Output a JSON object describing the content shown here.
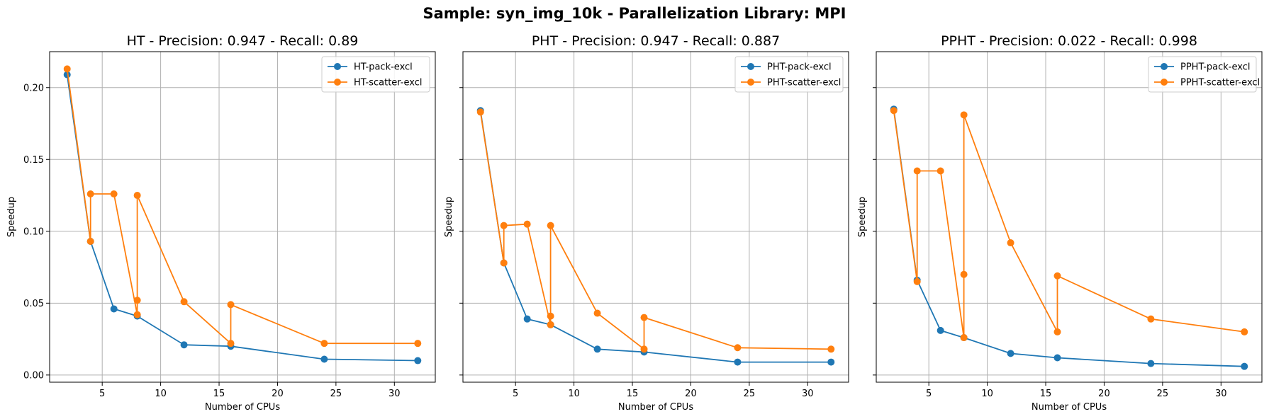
{
  "suptitle": "Sample: syn_img_10k - Parallelization Library: MPI",
  "chart_data": [
    {
      "type": "line",
      "title": "HT - Precision: 0.947 - Recall: 0.89",
      "xlabel": "Number of CPUs",
      "ylabel": "Speedup",
      "xlim": [
        0.5,
        33.5
      ],
      "ylim": [
        -0.005,
        0.225
      ],
      "xticks": [
        5,
        10,
        15,
        20,
        25,
        30
      ],
      "yticks": [
        0.0,
        0.05,
        0.1,
        0.15,
        0.2
      ],
      "ytick_labels": [
        "0.00",
        "0.05",
        "0.10",
        "0.15",
        "0.20"
      ],
      "show_yticklabels": true,
      "grid": true,
      "legend": "top-right",
      "series": [
        {
          "name": "HT-pack-excl",
          "color": "#1f77b4",
          "x": [
            2,
            4,
            6,
            8,
            12,
            16,
            24,
            32
          ],
          "y": [
            0.209,
            0.093,
            0.046,
            0.041,
            0.021,
            0.02,
            0.011,
            0.01
          ]
        },
        {
          "name": "HT-scatter-excl",
          "color": "#ff7f0e",
          "x": [
            2,
            4,
            4,
            6,
            8,
            8,
            8,
            12,
            16,
            16,
            24,
            32
          ],
          "y": [
            0.213,
            0.093,
            0.126,
            0.126,
            0.042,
            0.052,
            0.125,
            0.051,
            0.022,
            0.049,
            0.022,
            0.022
          ]
        }
      ]
    },
    {
      "type": "line",
      "title": "PHT - Precision: 0.947 - Recall: 0.887",
      "xlabel": "Number of CPUs",
      "ylabel": "Speedup",
      "xlim": [
        0.5,
        33.5
      ],
      "ylim": [
        -0.005,
        0.225
      ],
      "xticks": [
        5,
        10,
        15,
        20,
        25,
        30
      ],
      "yticks": [
        0.0,
        0.05,
        0.1,
        0.15,
        0.2
      ],
      "show_yticklabels": false,
      "grid": true,
      "legend": "top-right",
      "series": [
        {
          "name": "PHT-pack-excl",
          "color": "#1f77b4",
          "x": [
            2,
            4,
            6,
            8,
            12,
            16,
            24,
            32
          ],
          "y": [
            0.184,
            0.078,
            0.039,
            0.035,
            0.018,
            0.016,
            0.009,
            0.009
          ]
        },
        {
          "name": "PHT-scatter-excl",
          "color": "#ff7f0e",
          "x": [
            2,
            4,
            4,
            6,
            8,
            8,
            8,
            12,
            16,
            16,
            24,
            32
          ],
          "y": [
            0.183,
            0.078,
            0.104,
            0.105,
            0.035,
            0.041,
            0.104,
            0.043,
            0.018,
            0.04,
            0.019,
            0.018
          ]
        }
      ]
    },
    {
      "type": "line",
      "title": "PPHT - Precision: 0.022 - Recall: 0.998",
      "xlabel": "Number of CPUs",
      "ylabel": "Speedup",
      "xlim": [
        0.5,
        33.5
      ],
      "ylim": [
        -0.005,
        0.225
      ],
      "xticks": [
        5,
        10,
        15,
        20,
        25,
        30
      ],
      "yticks": [
        0.0,
        0.05,
        0.1,
        0.15,
        0.2
      ],
      "show_yticklabels": false,
      "grid": true,
      "legend": "top-right",
      "series": [
        {
          "name": "PPHT-pack-excl",
          "color": "#1f77b4",
          "x": [
            2,
            4,
            6,
            8,
            12,
            16,
            24,
            32
          ],
          "y": [
            0.185,
            0.066,
            0.031,
            0.026,
            0.015,
            0.012,
            0.008,
            0.006
          ]
        },
        {
          "name": "PPHT-scatter-excl",
          "color": "#ff7f0e",
          "x": [
            2,
            4,
            4,
            6,
            8,
            8,
            8,
            12,
            16,
            16,
            24,
            32
          ],
          "y": [
            0.184,
            0.065,
            0.142,
            0.142,
            0.026,
            0.07,
            0.181,
            0.092,
            0.03,
            0.069,
            0.039,
            0.03
          ]
        }
      ]
    }
  ]
}
